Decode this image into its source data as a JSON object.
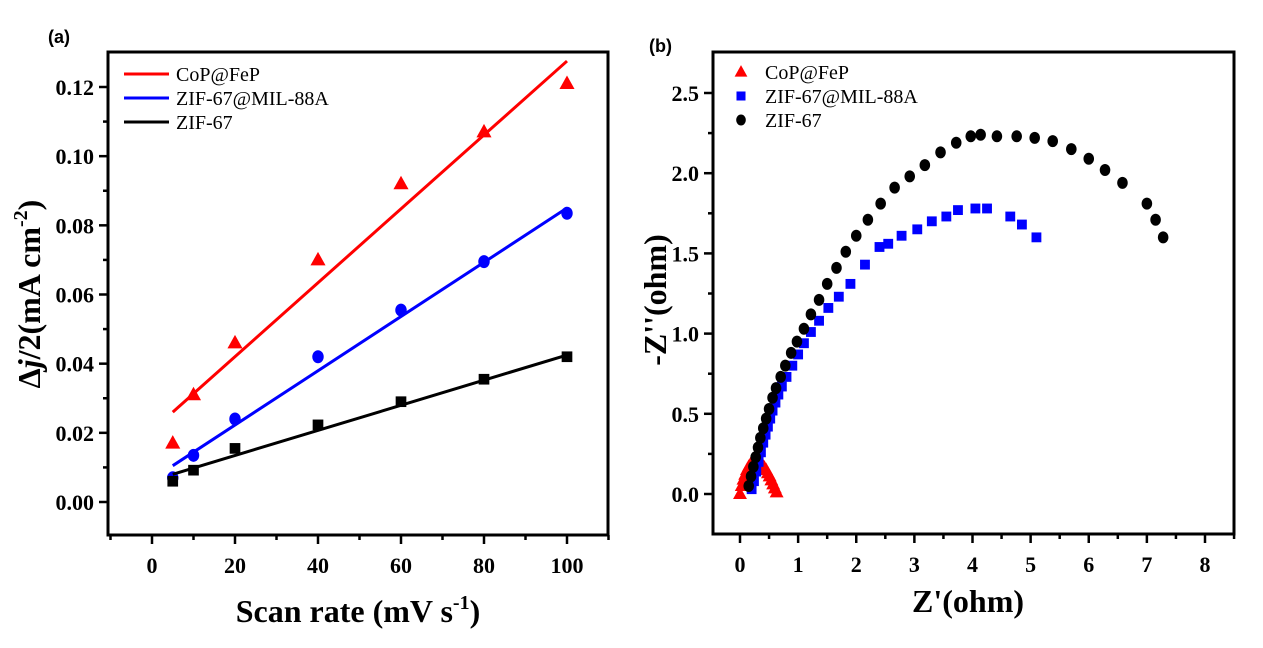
{
  "chart_data": [
    {
      "type": "scatter",
      "panel_label": "(a)",
      "title": "",
      "xlabel": "Scan rate (mV s-1)",
      "xlabel_parts": {
        "main": "Scan rate (mV s",
        "sup": "-1",
        "end": ")"
      },
      "ylabel": "Δj/2(mA cm-2)",
      "ylabel_parts": {
        "main": "Δ",
        "italic": "j",
        "mid": "/2(mA cm",
        "sup": "-2",
        "end": ")"
      },
      "xlim": [
        -10,
        110
      ],
      "ylim": [
        -0.01,
        0.13
      ],
      "xticks": [
        0,
        20,
        40,
        60,
        80,
        100
      ],
      "xtick_labels": [
        "0",
        "20",
        "40",
        "60",
        "80",
        "100"
      ],
      "yticks": [
        0.0,
        0.02,
        0.04,
        0.06,
        0.08,
        0.1,
        0.12
      ],
      "ytick_labels": [
        "0.00",
        "0.02",
        "0.04",
        "0.06",
        "0.08",
        "0.10",
        "0.12"
      ],
      "grid": false,
      "legend_position": "top-left",
      "legend_style": "line",
      "x": [
        5,
        10,
        20,
        40,
        60,
        80,
        100
      ],
      "series": [
        {
          "name": "CoP@FeP",
          "color": "#ff0000",
          "marker": "triangle",
          "values": [
            0.017,
            0.031,
            0.046,
            0.07,
            0.092,
            0.107,
            0.121
          ],
          "fit": {
            "x_range": [
              5,
              100
            ],
            "y_range": [
              0.026,
              0.1275
            ]
          }
        },
        {
          "name": "ZIF-67@MIL-88A",
          "color": "#0000ff",
          "marker": "circle",
          "values": [
            0.007,
            0.0135,
            0.024,
            0.042,
            0.0555,
            0.0695,
            0.0835
          ],
          "fit": {
            "x_range": [
              5,
              100
            ],
            "y_range": [
              0.0105,
              0.085
            ]
          }
        },
        {
          "name": "ZIF-67",
          "color": "#000000",
          "marker": "square",
          "values": [
            0.006,
            0.0092,
            0.0155,
            0.0223,
            0.029,
            0.0355,
            0.042
          ],
          "fit": {
            "x_range": [
              5,
              100
            ],
            "y_range": [
              0.008,
              0.0425
            ]
          }
        }
      ]
    },
    {
      "type": "scatter",
      "panel_label": "(b)",
      "title": "",
      "xlabel": "Z'(ohm)",
      "ylabel": "-Z''(ohm)",
      "ylabel_parts": {
        "main": "-Z''(ohm)"
      },
      "xlim": [
        -0.5,
        8.5
      ],
      "ylim": [
        -0.25,
        2.75
      ],
      "xticks": [
        0,
        1,
        2,
        3,
        4,
        5,
        6,
        7,
        8
      ],
      "xtick_labels": [
        "0",
        "1",
        "2",
        "3",
        "4",
        "5",
        "6",
        "7",
        "8"
      ],
      "yticks": [
        0.0,
        0.5,
        1.0,
        1.5,
        2.0,
        2.5
      ],
      "ytick_labels": [
        "0.0",
        "0.5",
        "1.0",
        "1.5",
        "2.0",
        "2.5"
      ],
      "grid": false,
      "legend_position": "top-left",
      "legend_style": "marker",
      "series": [
        {
          "name": "CoP@FeP",
          "color": "#ff0000",
          "marker": "triangle",
          "x": [
            0.0,
            0.03,
            0.06,
            0.09,
            0.12,
            0.15,
            0.18,
            0.21,
            0.24,
            0.27,
            0.3,
            0.33,
            0.36,
            0.39,
            0.42,
            0.45,
            0.48,
            0.51,
            0.54,
            0.57,
            0.6,
            0.63
          ],
          "y": [
            0.0,
            0.05,
            0.09,
            0.12,
            0.15,
            0.17,
            0.185,
            0.195,
            0.2,
            0.2,
            0.2,
            0.195,
            0.19,
            0.18,
            0.165,
            0.15,
            0.13,
            0.11,
            0.085,
            0.06,
            0.035,
            0.01
          ]
        },
        {
          "name": "ZIF-67@MIL-88A",
          "color": "#0000ff",
          "marker": "square",
          "x": [
            0.2,
            0.24,
            0.28,
            0.32,
            0.36,
            0.4,
            0.44,
            0.48,
            0.52,
            0.56,
            0.61,
            0.66,
            0.72,
            0.8,
            0.9,
            1.0,
            1.1,
            1.22,
            1.36,
            1.52,
            1.7,
            1.9,
            2.15,
            2.4,
            2.55,
            2.78,
            3.05,
            3.3,
            3.55,
            3.75,
            4.05,
            4.25,
            4.65,
            4.85,
            5.1
          ],
          "y": [
            0.03,
            0.08,
            0.14,
            0.2,
            0.26,
            0.32,
            0.37,
            0.42,
            0.47,
            0.52,
            0.57,
            0.62,
            0.67,
            0.73,
            0.8,
            0.87,
            0.94,
            1.01,
            1.08,
            1.16,
            1.23,
            1.31,
            1.43,
            1.54,
            1.56,
            1.61,
            1.65,
            1.7,
            1.73,
            1.77,
            1.78,
            1.78,
            1.73,
            1.68,
            1.6
          ]
        },
        {
          "name": "ZIF-67",
          "color": "#000000",
          "marker": "circle",
          "x": [
            0.15,
            0.19,
            0.23,
            0.27,
            0.31,
            0.35,
            0.4,
            0.45,
            0.5,
            0.56,
            0.62,
            0.7,
            0.78,
            0.88,
            0.98,
            1.1,
            1.22,
            1.36,
            1.5,
            1.66,
            1.82,
            2.0,
            2.2,
            2.42,
            2.66,
            2.92,
            3.18,
            3.45,
            3.72,
            3.97,
            4.14,
            4.42,
            4.76,
            5.07,
            5.38,
            5.7,
            6.0,
            6.28,
            6.58,
            7.0,
            7.15,
            7.28
          ],
          "y": [
            0.05,
            0.11,
            0.17,
            0.23,
            0.29,
            0.35,
            0.41,
            0.47,
            0.53,
            0.6,
            0.66,
            0.73,
            0.8,
            0.88,
            0.95,
            1.03,
            1.12,
            1.21,
            1.31,
            1.41,
            1.51,
            1.61,
            1.71,
            1.81,
            1.91,
            1.98,
            2.05,
            2.13,
            2.19,
            2.23,
            2.24,
            2.23,
            2.23,
            2.22,
            2.2,
            2.15,
            2.09,
            2.02,
            1.94,
            1.81,
            1.71,
            1.6
          ]
        }
      ]
    }
  ]
}
